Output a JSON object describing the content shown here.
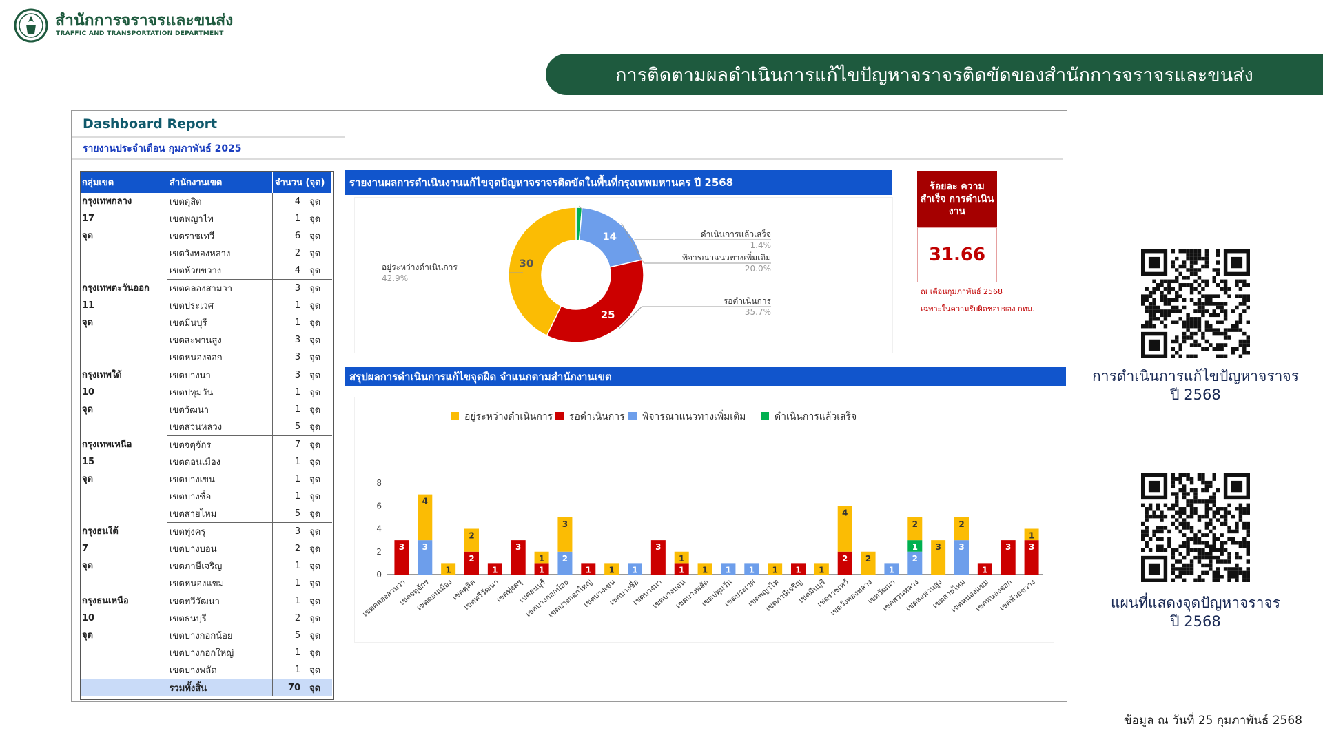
{
  "header": {
    "org_name": "สำนักการจราจรและขนส่ง",
    "org_name_en": "TRAFFIC AND TRANSPORTATION DEPARTMENT",
    "banner_title": "การติดตามผลดำเนินการแก้ไขปัญหาจราจรติดขัดของสำนักการจราจรและขนส่ง"
  },
  "dashboard": {
    "title": "Dashboard Report",
    "month_label": "รายงานประจำเดือน  กุมภาพันธ์ 2025"
  },
  "table": {
    "headers": [
      "กลุ่มเขต",
      "สำนักงานเขต",
      "จำนวน (จุด)"
    ],
    "unit": "จุด",
    "groups": [
      {
        "name": "กรุงเทพกลาง",
        "total": "17",
        "unit": "จุด",
        "rows": [
          [
            "เขตดุสิต",
            "4"
          ],
          [
            "เขตพญาไท",
            "1"
          ],
          [
            "เขตราชเทวี",
            "6"
          ],
          [
            "เขตวังทองหลาง",
            "2"
          ],
          [
            "เขตห้วยขวาง",
            "4"
          ]
        ]
      },
      {
        "name": "กรุงเทพตะวันออก",
        "total": "11",
        "unit": "จุด",
        "rows": [
          [
            "เขตคลองสามวา",
            "3"
          ],
          [
            "เขตประเวศ",
            "1"
          ],
          [
            "เขตมีนบุรี",
            "1"
          ],
          [
            "เขตสะพานสูง",
            "3"
          ],
          [
            "เขตหนองจอก",
            "3"
          ]
        ]
      },
      {
        "name": "กรุงเทพใต้",
        "total": "10",
        "unit": "จุด",
        "rows": [
          [
            "เขตบางนา",
            "3"
          ],
          [
            "เขตปทุมวัน",
            "1"
          ],
          [
            "เขตวัฒนา",
            "1"
          ],
          [
            "เขตสวนหลวง",
            "5"
          ]
        ]
      },
      {
        "name": "กรุงเทพเหนือ",
        "total": "15",
        "unit": "จุด",
        "rows": [
          [
            "เขตจตุจักร",
            "7"
          ],
          [
            "เขตดอนเมือง",
            "1"
          ],
          [
            "เขตบางเขน",
            "1"
          ],
          [
            "เขตบางซื่อ",
            "1"
          ],
          [
            "เขตสายไหม",
            "5"
          ]
        ]
      },
      {
        "name": "กรุงธนใต้",
        "total": "7",
        "unit": "จุด",
        "rows": [
          [
            "เขตทุ่งครุ",
            "3"
          ],
          [
            "เขตบางบอน",
            "2"
          ],
          [
            "เขตภาษีเจริญ",
            "1"
          ],
          [
            "เขตหนองแขม",
            "1"
          ]
        ]
      },
      {
        "name": "กรุงธนเหนือ",
        "total": "10",
        "unit": "จุด",
        "rows": [
          [
            "เขตทวีวัฒนา",
            "1"
          ],
          [
            "เขตธนบุรี",
            "2"
          ],
          [
            "เขตบางกอกน้อย",
            "5"
          ],
          [
            "เขตบางกอกใหญ่",
            "1"
          ],
          [
            "เขตบางพลัด",
            "1"
          ]
        ]
      }
    ],
    "total_label": "รวมทั้งสิ้น",
    "total_value": "70"
  },
  "section1_title": "รายงานผลการดำเนินงานแก้ไขจุดปัญหาจราจรติดขัดในพื้นที่กรุงเทพมหานคร ปี 2568",
  "section2_title": "สรุปผลการดำเนินการแก้ไขจุดฝืด จำแนกตามสำนักงานเขต",
  "success": {
    "header": "ร้อยละ ความสำเร็จ การดำเนินงาน",
    "value": "31.66",
    "note1": "ณ เดือนกุมภาพันธ์ 2568",
    "note2": "เฉพาะในความรับผิดชอบของ กทม."
  },
  "qr": {
    "caption1_line1": "การดำเนินการแก้ไขปัญหาจราจร",
    "caption1_line2": "ปี 2568",
    "caption2_line1": "แผนที่แสดงจุดปัญหาจราจร",
    "caption2_line2": "ปี 2568"
  },
  "footer": "ข้อมูล ณ วันที่ 25 กุมภาพันธ์ 2568",
  "colors": {
    "in_progress": "#fbbc04",
    "pending": "#cc0000",
    "considering": "#6d9eeb",
    "done": "#00b050",
    "brand_green": "#1e5a3e",
    "header_blue": "#1155cc"
  },
  "chart_data": [
    {
      "type": "pie",
      "variant": "donut",
      "slices": [
        {
          "label": "ดำเนินการแล้วเสร็จ",
          "value": 1,
          "percent": "1.4%",
          "color": "#00b050"
        },
        {
          "label": "พิจารณาแนวทางเพิ่มเติม",
          "value": 14,
          "percent": "20.0%",
          "color": "#6d9eeb"
        },
        {
          "label": "รอดำเนินการ",
          "value": 25,
          "percent": "35.7%",
          "color": "#cc0000"
        },
        {
          "label": "อยู่ระหว่างดำเนินการ",
          "value": 30,
          "percent": "42.9%",
          "color": "#fbbc04"
        }
      ]
    },
    {
      "type": "bar",
      "stacked": true,
      "categories": [
        "เขตคลองสามวา",
        "เขตจตุจักร",
        "เขตดอนเมือง",
        "เขตดุสิต",
        "เขตทวีวัฒนา",
        "เขตทุ่งครุ",
        "เขตธนบุรี",
        "เขตบางกอกน้อย",
        "เขตบางกอกใหญ่",
        "เขตบางเขน",
        "เขตบางซื่อ",
        "เขตบางนา",
        "เขตบางบอน",
        "เขตบางพลัด",
        "เขตปทุมวัน",
        "เขตประเวศ",
        "เขตพญาไท",
        "เขตภาษีเจริญ",
        "เขตมีนบุรี",
        "เขตราชเทวี",
        "เขตวังทองหลาง",
        "เขตวัฒนา",
        "เขตสวนหลวง",
        "เขตสะพานสูง",
        "เขตสายไหม",
        "เขตหนองแขม",
        "เขตหนองจอก",
        "เขตห้วยขวาง"
      ],
      "series": [
        {
          "name": "อยู่ระหว่างดำเนินการ",
          "color": "#fbbc04",
          "values": [
            0,
            4,
            1,
            2,
            0,
            0,
            1,
            3,
            0,
            1,
            0,
            0,
            1,
            1,
            0,
            0,
            1,
            0,
            1,
            4,
            2,
            0,
            2,
            3,
            2,
            0,
            0,
            1
          ]
        },
        {
          "name": "รอดำเนินการ",
          "color": "#cc0000",
          "values": [
            3,
            0,
            0,
            2,
            1,
            3,
            1,
            0,
            1,
            0,
            0,
            3,
            1,
            0,
            0,
            0,
            0,
            1,
            0,
            2,
            0,
            0,
            0,
            0,
            0,
            1,
            3,
            3
          ]
        },
        {
          "name": "พิจารณาแนวทางเพิ่มเติม",
          "color": "#6d9eeb",
          "values": [
            0,
            3,
            0,
            0,
            0,
            0,
            0,
            2,
            0,
            0,
            1,
            0,
            0,
            0,
            1,
            1,
            0,
            0,
            0,
            0,
            0,
            1,
            2,
            0,
            3,
            0,
            0,
            0
          ]
        },
        {
          "name": "ดำเนินการแล้วเสร็จ",
          "color": "#00b050",
          "values": [
            0,
            0,
            0,
            0,
            0,
            0,
            0,
            0,
            0,
            0,
            0,
            0,
            0,
            0,
            0,
            0,
            0,
            0,
            0,
            0,
            0,
            0,
            1,
            0,
            0,
            0,
            0,
            0
          ]
        }
      ],
      "ylim": [
        0,
        8
      ],
      "yticks": [
        0,
        2,
        4,
        6,
        8
      ],
      "legend": "top"
    }
  ]
}
